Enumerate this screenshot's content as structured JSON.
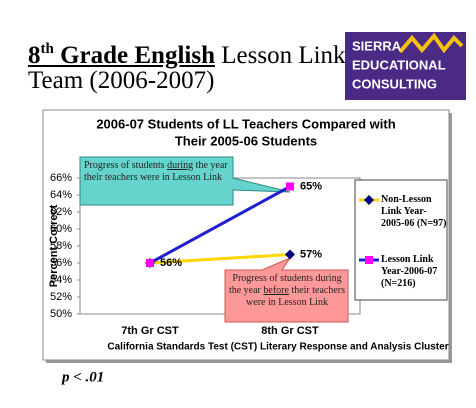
{
  "slide": {
    "title_line1": [
      "8",
      "th",
      " Grade English",
      " Lesson Link"
    ],
    "title_line2": "Team (2006-2007)",
    "logo": [
      "SIERRA",
      "EDUCATIONAL",
      "CONSULTING"
    ],
    "footnote": "p < .01"
  },
  "chart_data": {
    "type": "line",
    "title": [
      "2006-07 Students of LL Teachers Compared with",
      "Their 2005-06 Students"
    ],
    "y_label": "Percent Correct",
    "x_label": "California Standards Test (CST) Literary Response and Analysis Cluster",
    "categories": [
      "7th Gr CST",
      "8th Gr CST"
    ],
    "series": [
      {
        "name": "Non-Lesson Link Year-2005-06 (N=97)",
        "color": "#ffd700",
        "marker": "diamond",
        "marker_color": "#000080",
        "values": [
          56,
          57
        ],
        "value_labels": [
          null,
          "57%"
        ]
      },
      {
        "name": "Lesson Link Year-2006-07 (N=216)",
        "color": "#1f1fd1",
        "marker": "square",
        "marker_color": "#ff00ff",
        "values": [
          56,
          65
        ],
        "value_labels": [
          "56%",
          "65%"
        ]
      }
    ],
    "ylim": [
      50,
      66
    ],
    "yticks": [
      {
        "value": 50,
        "label": "50%"
      },
      {
        "value": 52,
        "label": "52%"
      },
      {
        "value": 54,
        "label": "54%"
      },
      {
        "value": 56,
        "label": "56%"
      },
      {
        "value": 58,
        "label": "58%"
      },
      {
        "value": 60,
        "label": "60%"
      },
      {
        "value": 62,
        "label": "62%"
      },
      {
        "value": 64,
        "label": "64%"
      },
      {
        "value": 66,
        "label": "66%"
      }
    ],
    "grid": false,
    "legend": "right",
    "annotations": [
      {
        "parts": [
          "Progress of students ",
          "during",
          " the year their teachers were in Lesson Link"
        ],
        "color": "#66d4cc"
      },
      {
        "parts": [
          "Progress of students during the year ",
          "before",
          " their teachers were in Lesson Link"
        ],
        "color": "#ff9999"
      }
    ]
  }
}
